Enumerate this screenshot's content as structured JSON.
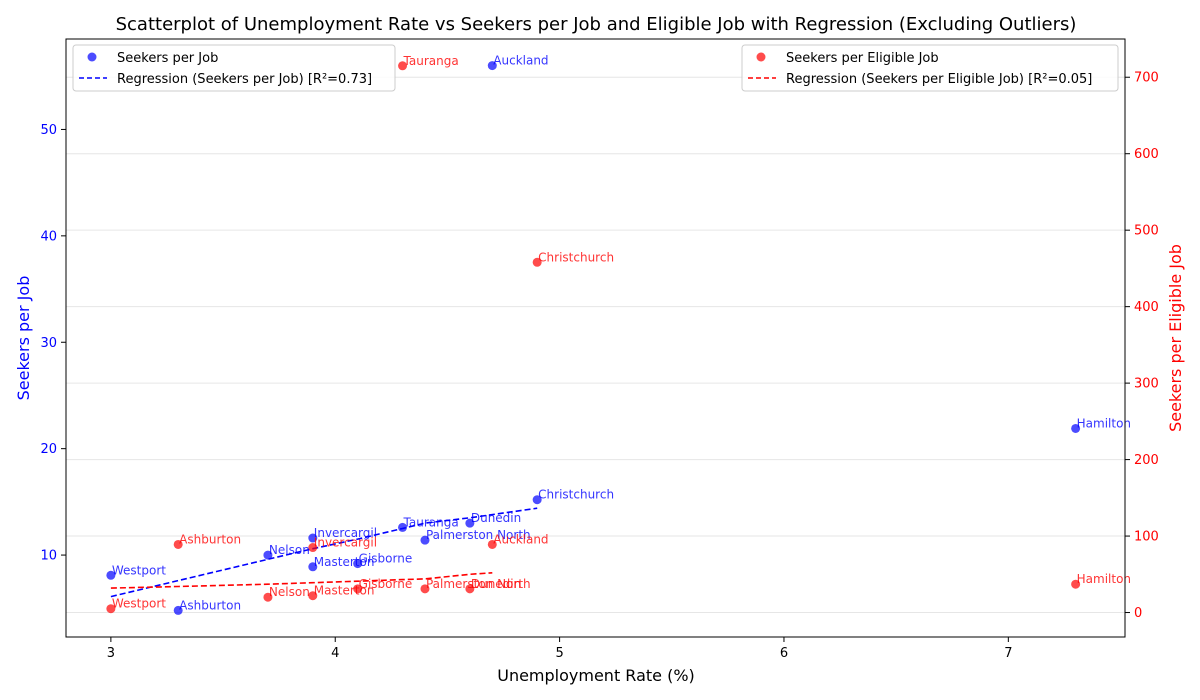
{
  "chart_data": {
    "type": "scatter",
    "title": "Scatterplot of Unemployment Rate vs Seekers per Job and Eligible Job with Regression (Excluding Outliers)",
    "xlabel": "Unemployment Rate (%)",
    "ylabel_left": "Seekers per Job",
    "ylabel_right": "Seekers per Eligible Job",
    "xlim": [
      2.8,
      7.52
    ],
    "ylim_left": [
      2.3,
      58.5
    ],
    "ylim_right": [
      -32,
      750
    ],
    "x_ticks": [
      3,
      4,
      5,
      6,
      7
    ],
    "y_ticks_left": [
      10,
      20,
      30,
      40,
      50
    ],
    "y_ticks_right": [
      0,
      100,
      200,
      300,
      400,
      500,
      600,
      700
    ],
    "grid": "horizontal-light",
    "colors": {
      "left": "#0000ff",
      "right": "#ff0000"
    },
    "series": [
      {
        "name": "Seekers per Job",
        "axis": "left",
        "points": [
          {
            "label": "Westport",
            "x": 3.0,
            "y": 8.1
          },
          {
            "label": "Ashburton",
            "x": 3.3,
            "y": 4.8
          },
          {
            "label": "Nelson",
            "x": 3.7,
            "y": 10.0
          },
          {
            "label": "Invercargil",
            "x": 3.9,
            "y": 11.6
          },
          {
            "label": "Masterton",
            "x": 3.9,
            "y": 8.9
          },
          {
            "label": "Gisborne",
            "x": 4.1,
            "y": 9.2
          },
          {
            "label": "Tauranga",
            "x": 4.3,
            "y": 12.6
          },
          {
            "label": "Palmerston North",
            "x": 4.4,
            "y": 11.4
          },
          {
            "label": "Dunedin",
            "x": 4.6,
            "y": 13.0
          },
          {
            "label": "Auckland",
            "x": 4.7,
            "y": 56.0
          },
          {
            "label": "Christchurch",
            "x": 4.9,
            "y": 15.2
          },
          {
            "label": "Hamilton",
            "x": 7.3,
            "y": 21.9
          }
        ]
      },
      {
        "name": "Seekers per Eligible Job",
        "axis": "right",
        "points": [
          {
            "label": "Westport",
            "x": 3.0,
            "y": 5
          },
          {
            "label": "Ashburton",
            "x": 3.3,
            "y": 89
          },
          {
            "label": "Nelson",
            "x": 3.7,
            "y": 20
          },
          {
            "label": "Invercargil",
            "x": 3.9,
            "y": 85
          },
          {
            "label": "Masterton",
            "x": 3.9,
            "y": 22
          },
          {
            "label": "Gisborne",
            "x": 4.1,
            "y": 31
          },
          {
            "label": "Tauranga",
            "x": 4.3,
            "y": 715
          },
          {
            "label": "Palmerston North",
            "x": 4.4,
            "y": 31
          },
          {
            "label": "Dunedin",
            "x": 4.6,
            "y": 31
          },
          {
            "label": "Auckland",
            "x": 4.7,
            "y": 89
          },
          {
            "label": "Christchurch",
            "x": 4.9,
            "y": 458
          },
          {
            "label": "Hamilton",
            "x": 7.3,
            "y": 37
          }
        ]
      }
    ],
    "regressions": [
      {
        "name": "Regression (Seekers per Job) [R²=0.73]",
        "axis": "left",
        "x": [
          3.0,
          3.3,
          3.7,
          3.9,
          3.9,
          4.1,
          4.3,
          4.4,
          4.6,
          4.9
        ],
        "y": [
          6.1,
          7.6,
          9.6,
          10.6,
          10.6,
          11.5,
          12.5,
          13.0,
          13.5,
          14.4
        ]
      },
      {
        "name": "Regression (Seekers per Eligible Job) [R²=0.05]",
        "axis": "right",
        "x": [
          3.0,
          3.3,
          3.7,
          3.9,
          3.9,
          4.1,
          4.3,
          4.4,
          4.6,
          4.7
        ],
        "y": [
          32,
          34,
          37,
          39,
          39,
          41,
          43,
          44,
          50,
          52
        ]
      }
    ],
    "legend_left": {
      "placement": "top-left",
      "entries": [
        "Seekers per Job",
        "Regression (Seekers per Job) [R²=0.73]"
      ]
    },
    "legend_right": {
      "placement": "top-right",
      "entries": [
        "Seekers per Eligible Job",
        "Regression (Seekers per Eligible Job) [R²=0.05]"
      ]
    }
  }
}
